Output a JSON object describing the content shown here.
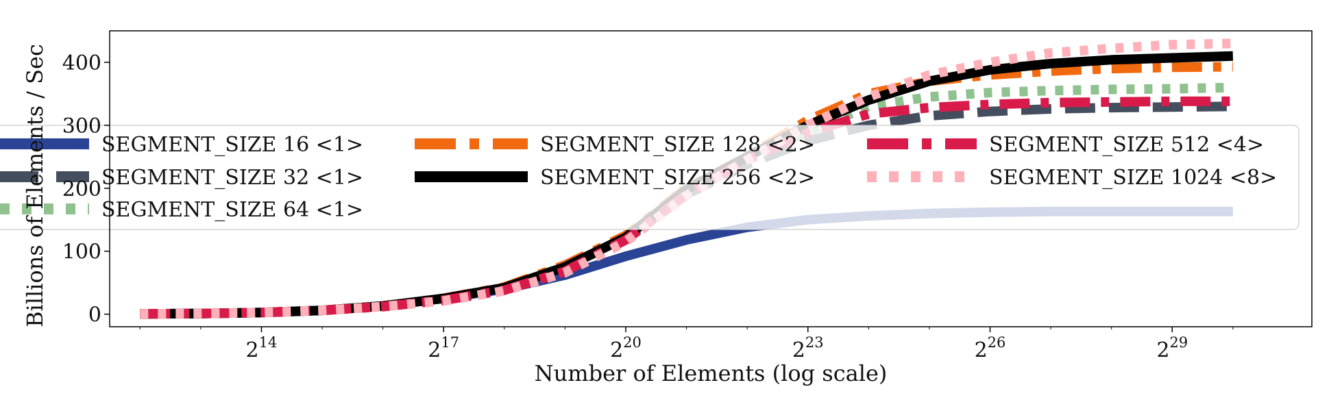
{
  "chart_data": {
    "type": "line",
    "title": "",
    "xlabel": "Number of Elements (log scale)",
    "ylabel": "Billions of Elements / Sec",
    "x_scale": "log2",
    "xlim_exp": [
      11.5,
      31.3
    ],
    "ylim": [
      -20,
      450
    ],
    "x_ticks": [
      {
        "base": "2",
        "exp": "14",
        "value": 14
      },
      {
        "base": "2",
        "exp": "17",
        "value": 17
      },
      {
        "base": "2",
        "exp": "20",
        "value": 20
      },
      {
        "base": "2",
        "exp": "23",
        "value": 23
      },
      {
        "base": "2",
        "exp": "26",
        "value": 26
      },
      {
        "base": "2",
        "exp": "29",
        "value": 29
      }
    ],
    "y_ticks": [
      {
        "label": "0",
        "value": 0
      },
      {
        "label": "100",
        "value": 100
      },
      {
        "label": "200",
        "value": 200
      },
      {
        "label": "300",
        "value": 300
      },
      {
        "label": "400",
        "value": 400
      }
    ],
    "grid": false,
    "legend_position": "center, 3 columns, semi-transparent",
    "x_exp": [
      12,
      13,
      14,
      15,
      16,
      17,
      18,
      19,
      20,
      21,
      22,
      23,
      24,
      25,
      26,
      27,
      28,
      29,
      30
    ],
    "series": [
      {
        "name": "SEGMENT_SIZE 16 <1>",
        "color": "#2a4394",
        "style": "solid",
        "values": [
          0.5,
          1,
          2.5,
          6,
          13,
          25,
          40,
          62,
          92,
          118,
          138,
          150,
          156,
          160,
          162,
          163,
          163,
          163,
          163
        ]
      },
      {
        "name": "SEGMENT_SIZE 32 <1>",
        "color": "#444e5e",
        "style": "dashed",
        "values": [
          0.5,
          1,
          2.5,
          6,
          13,
          25,
          42,
          75,
          120,
          190,
          238,
          275,
          300,
          315,
          322,
          326,
          328,
          329,
          330
        ]
      },
      {
        "name": "SEGMENT_SIZE 64 <1>",
        "color": "#8fc28f",
        "style": "dotted",
        "values": [
          0.5,
          1,
          2.5,
          6,
          13,
          25,
          42,
          76,
          122,
          195,
          245,
          290,
          330,
          345,
          352,
          355,
          357,
          358,
          360
        ]
      },
      {
        "name": "SEGMENT_SIZE 128 <2>",
        "color": "#f26a0f",
        "style": "dashdot",
        "values": [
          0.5,
          1,
          2.5,
          6,
          13,
          25,
          43,
          78,
          125,
          200,
          250,
          308,
          350,
          370,
          380,
          386,
          390,
          392,
          393
        ]
      },
      {
        "name": "SEGMENT_SIZE 256 <2>",
        "color": "#000000",
        "style": "solid",
        "values": [
          0.5,
          1,
          2.5,
          6,
          13,
          25,
          42,
          75,
          122,
          198,
          250,
          300,
          340,
          370,
          388,
          398,
          404,
          407,
          410
        ]
      },
      {
        "name": "SEGMENT_SIZE 512 <4>",
        "color": "#d81b4a",
        "style": "dashdot",
        "values": [
          0.5,
          1,
          2.5,
          6,
          12,
          22,
          38,
          68,
          118,
          190,
          245,
          288,
          318,
          328,
          333,
          336,
          337,
          338,
          338
        ]
      },
      {
        "name": "SEGMENT_SIZE 1024 <8>",
        "color": "#ffb0b8",
        "style": "dotted",
        "values": [
          0.5,
          1,
          2.5,
          6,
          12,
          21,
          37,
          66,
          115,
          188,
          245,
          300,
          345,
          380,
          400,
          415,
          422,
          428,
          430
        ]
      }
    ]
  }
}
